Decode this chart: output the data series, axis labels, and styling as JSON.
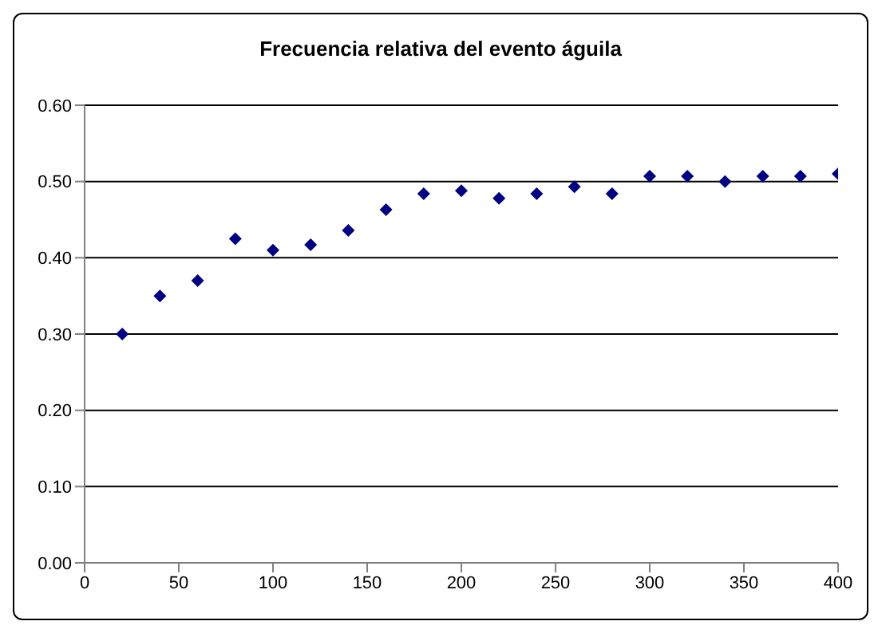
{
  "chart_data": {
    "type": "scatter",
    "title": "Frecuencia relativa del evento águila",
    "x": [
      20,
      40,
      60,
      80,
      100,
      120,
      140,
      160,
      180,
      200,
      220,
      240,
      260,
      280,
      300,
      320,
      340,
      360,
      380,
      400
    ],
    "series": [
      {
        "color": "#000080",
        "values": [
          0.3,
          0.35,
          0.37,
          0.425,
          0.41,
          0.417,
          0.436,
          0.463,
          0.484,
          0.488,
          0.478,
          0.484,
          0.493,
          0.484,
          0.507,
          0.507,
          0.5,
          0.507,
          0.507,
          0.51
        ]
      }
    ],
    "xlim": [
      0,
      400
    ],
    "xticks": [
      0,
      50,
      100,
      150,
      200,
      250,
      300,
      350,
      400
    ],
    "ylim": [
      0,
      0.6
    ],
    "yticks": [
      {
        "value": 0,
        "label": "0.00"
      },
      {
        "value": 0.1,
        "label": "0.10"
      },
      {
        "value": 0.2,
        "label": "0.20"
      },
      {
        "value": 0.3,
        "label": "0.30"
      },
      {
        "value": 0.4,
        "label": "0.40"
      },
      {
        "value": 0.5,
        "label": "0.50"
      },
      {
        "value": 0.6,
        "label": "0.60"
      }
    ],
    "grid": "y",
    "marker": "diamond",
    "legend": false
  }
}
